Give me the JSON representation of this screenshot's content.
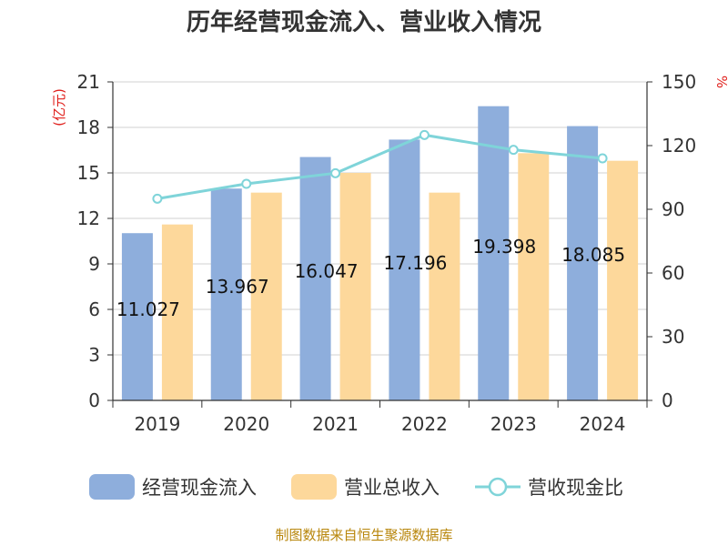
{
  "title": "历年经营现金流入、营业收入情况",
  "footer": "制图数据来自恒生聚源数据库",
  "chart_data": {
    "type": "bar",
    "categories": [
      "2019",
      "2020",
      "2021",
      "2022",
      "2023",
      "2024"
    ],
    "y_left": {
      "label": "(亿元)",
      "min": 0,
      "max": 21,
      "ticks": [
        0,
        3,
        6,
        9,
        12,
        15,
        18,
        21
      ]
    },
    "y_right": {
      "label": "%",
      "min": 0,
      "max": 150,
      "ticks": [
        0,
        30,
        60,
        90,
        120,
        150
      ]
    },
    "grid": true,
    "legend_position": "bottom",
    "series": [
      {
        "name": "经营现金流入",
        "kind": "bar",
        "axis": "left",
        "color": "#8eaedc",
        "values": [
          11.027,
          13.967,
          16.047,
          17.196,
          19.398,
          18.085
        ],
        "data_labels": [
          "11.027",
          "13.967",
          "16.047",
          "17.196",
          "19.398",
          "18.085"
        ]
      },
      {
        "name": "营业总收入",
        "kind": "bar",
        "axis": "left",
        "color": "#fdd89b",
        "values": [
          11.6,
          13.7,
          15.0,
          13.7,
          16.3,
          15.8
        ]
      },
      {
        "name": "营收现金比",
        "kind": "line",
        "axis": "right",
        "color": "#7fd4d9",
        "values": [
          95,
          102,
          107,
          125,
          118,
          114
        ]
      }
    ]
  }
}
